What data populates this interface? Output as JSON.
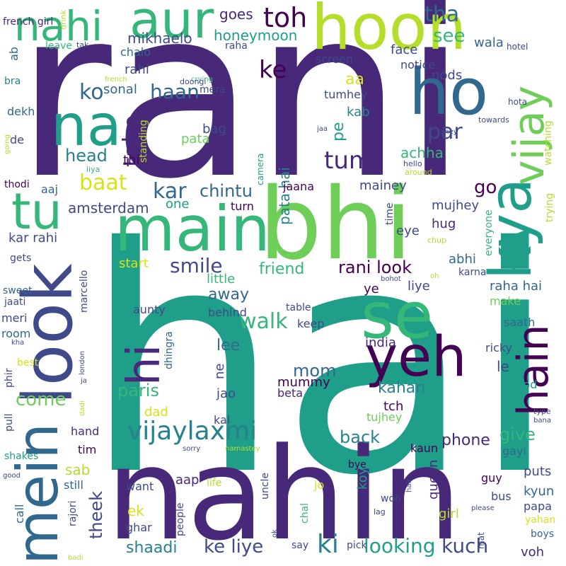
{
  "cloud": {
    "background": "#ffffff",
    "colors": {
      "dark_purple": "#440154",
      "purple": "#482878",
      "indigo": "#3e4a89",
      "blue": "#31688e",
      "teal_blue": "#26828e",
      "teal": "#1f9e89",
      "green": "#35b779",
      "light_green": "#6ece58",
      "lime": "#b5de2b",
      "yellow": "#d8e219"
    },
    "words": [
      {
        "id": "hai",
        "text": "hai"
      },
      {
        "id": "rani",
        "text": "rani"
      },
      {
        "id": "nahin",
        "text": "nahin"
      },
      {
        "id": "bhi",
        "text": "bhi"
      },
      {
        "id": "hoon",
        "text": "hoon"
      },
      {
        "id": "main",
        "text": "main"
      },
      {
        "id": "look",
        "text": "look"
      },
      {
        "id": "mein",
        "text": "mein"
      },
      {
        "id": "se",
        "text": "se"
      },
      {
        "id": "yeh",
        "text": "yeh"
      },
      {
        "id": "na",
        "text": "na"
      },
      {
        "id": "ho",
        "text": "ho"
      },
      {
        "id": "kya",
        "text": "kya"
      },
      {
        "id": "vijay",
        "text": "vijay"
      },
      {
        "id": "aur",
        "text": "aur"
      },
      {
        "id": "nahi",
        "text": "nahi"
      },
      {
        "id": "tu",
        "text": "tu"
      },
      {
        "id": "hain",
        "text": "hain"
      },
      {
        "id": "hi",
        "text": "hi"
      },
      {
        "id": "vijaylaxmi",
        "text": "vijaylaxmi"
      },
      {
        "id": "ki",
        "text": "ki"
      },
      {
        "id": "kuch",
        "text": "kuch"
      },
      {
        "id": "looking",
        "text": "looking"
      },
      {
        "id": "ke_liye_1",
        "text": "ke liye"
      },
      {
        "id": "toh",
        "text": "toh"
      },
      {
        "id": "tha",
        "text": "tha"
      },
      {
        "id": "see",
        "text": "see"
      },
      {
        "id": "ke_1",
        "text": "ke"
      },
      {
        "id": "ko",
        "text": "ko"
      },
      {
        "id": "haan",
        "text": "haan"
      },
      {
        "id": "take",
        "text": "take"
      },
      {
        "id": "par",
        "text": "par"
      },
      {
        "id": "tum",
        "text": "tum"
      },
      {
        "id": "baat",
        "text": "baat"
      },
      {
        "id": "kar",
        "text": "kar"
      },
      {
        "id": "chintu",
        "text": "chintu"
      },
      {
        "id": "smile",
        "text": "smile"
      },
      {
        "id": "walk",
        "text": "walk"
      },
      {
        "id": "friend",
        "text": "friend"
      },
      {
        "id": "rani_look",
        "text": "rani look"
      },
      {
        "id": "go",
        "text": "go"
      },
      {
        "id": "head",
        "text": "head"
      },
      {
        "id": "mikhaelo",
        "text": "mikhaelo"
      },
      {
        "id": "honeymoon",
        "text": "honeymoon"
      },
      {
        "id": "goes",
        "text": "goes"
      },
      {
        "id": "amsterdam",
        "text": "amsterdam"
      },
      {
        "id": "come",
        "text": "come"
      },
      {
        "id": "paris",
        "text": "paris"
      },
      {
        "id": "mom",
        "text": "mom"
      },
      {
        "id": "back",
        "text": "back"
      },
      {
        "id": "give",
        "text": "give"
      },
      {
        "id": "phone",
        "text": "phone"
      },
      {
        "id": "kahan",
        "text": "kahan"
      },
      {
        "id": "shaadi",
        "text": "shaadi"
      },
      {
        "id": "theek",
        "text": "theek"
      },
      {
        "id": "away",
        "text": "away"
      },
      {
        "id": "lee",
        "text": "lee"
      },
      {
        "id": "start",
        "text": "start"
      },
      {
        "id": "kar_rahi",
        "text": "kar rahi"
      },
      {
        "id": "pata_hai",
        "text": "pata hai"
      },
      {
        "id": "sonal",
        "text": "sonal"
      },
      {
        "id": "rahi",
        "text": "rahi"
      },
      {
        "id": "aa",
        "text": "aa"
      },
      {
        "id": "kab",
        "text": "kab"
      },
      {
        "id": "pe",
        "text": "pe"
      },
      {
        "id": "achha",
        "text": "achha"
      },
      {
        "id": "mainey",
        "text": "mainey"
      },
      {
        "id": "mujhey",
        "text": "mujhey"
      },
      {
        "id": "hug",
        "text": "hug"
      },
      {
        "id": "eye",
        "text": "eye"
      },
      {
        "id": "abhi",
        "text": "abhi"
      },
      {
        "id": "liye",
        "text": "liye"
      },
      {
        "id": "ye",
        "text": "ye"
      },
      {
        "id": "raha_hai",
        "text": "raha hai"
      },
      {
        "id": "make",
        "text": "make"
      },
      {
        "id": "saath",
        "text": "saath"
      },
      {
        "id": "ricky",
        "text": "ricky"
      },
      {
        "id": "le",
        "text": "le"
      },
      {
        "id": "food",
        "text": "food"
      },
      {
        "id": "india",
        "text": "india"
      },
      {
        "id": "mummy",
        "text": "mummy"
      },
      {
        "id": "beta",
        "text": "beta"
      },
      {
        "id": "tch",
        "text": "tch"
      },
      {
        "id": "tujhey",
        "text": "tujhey"
      },
      {
        "id": "ka",
        "text": "ka"
      },
      {
        "id": "queen",
        "text": "queen"
      },
      {
        "id": "koyi",
        "text": "koyi"
      },
      {
        "id": "kaun",
        "text": "kaun"
      },
      {
        "id": "gayi",
        "text": "gayi"
      },
      {
        "id": "puts",
        "text": "puts"
      },
      {
        "id": "kyun",
        "text": "kyun"
      },
      {
        "id": "papa",
        "text": "papa"
      },
      {
        "id": "yahan",
        "text": "yahan"
      },
      {
        "id": "boys",
        "text": "boys"
      },
      {
        "id": "guy",
        "text": "guy"
      },
      {
        "id": "bus",
        "text": "bus"
      },
      {
        "id": "girl",
        "text": "girl"
      },
      {
        "id": "voh",
        "text": "voh"
      },
      {
        "id": "aap",
        "text": "aap"
      },
      {
        "id": "ek",
        "text": "ek"
      },
      {
        "id": "ghar",
        "text": "ghar"
      },
      {
        "id": "want",
        "text": "want"
      },
      {
        "id": "sab",
        "text": "sab"
      },
      {
        "id": "still",
        "text": "still"
      },
      {
        "id": "tim",
        "text": "tim"
      },
      {
        "id": "hand",
        "text": "hand"
      },
      {
        "id": "dad",
        "text": "dad"
      },
      {
        "id": "kal",
        "text": "kal"
      },
      {
        "id": "jao",
        "text": "jao"
      },
      {
        "id": "ne",
        "text": "ne"
      },
      {
        "id": "keep",
        "text": "keep"
      },
      {
        "id": "table",
        "text": "table"
      },
      {
        "id": "behind",
        "text": "behind"
      },
      {
        "id": "aunty",
        "text": "aunty"
      },
      {
        "id": "little",
        "text": "little"
      },
      {
        "id": "turn",
        "text": "turn"
      },
      {
        "id": "one",
        "text": "one"
      },
      {
        "id": "aaj",
        "text": "aaj"
      },
      {
        "id": "jaana",
        "text": "jaana"
      },
      {
        "id": "thi",
        "text": "thi"
      },
      {
        "id": "bag",
        "text": "bag"
      },
      {
        "id": "pata",
        "text": "pata"
      },
      {
        "id": "mera",
        "text": "mera"
      },
      {
        "id": "tumhey",
        "text": "tumhey"
      },
      {
        "id": "nods",
        "text": "nods"
      },
      {
        "id": "notice",
        "text": "notice"
      },
      {
        "id": "face",
        "text": "face"
      },
      {
        "id": "wala",
        "text": "wala"
      },
      {
        "id": "screen",
        "text": "screen"
      },
      {
        "id": "raha",
        "text": "raha"
      },
      {
        "id": "chalo",
        "text": "chalo"
      },
      {
        "id": "hotel",
        "text": "hotel"
      },
      {
        "id": "leave",
        "text": "leave"
      },
      {
        "id": "tak",
        "text": "tak"
      },
      {
        "id": "ab",
        "text": "ab"
      },
      {
        "id": "french_girl",
        "text": "french girl"
      },
      {
        "id": "bra",
        "text": "bra"
      },
      {
        "id": "dekh",
        "text": "dekh"
      },
      {
        "id": "de",
        "text": "de"
      },
      {
        "id": "thodi",
        "text": "thodi"
      },
      {
        "id": "drink",
        "text": "drink"
      },
      {
        "id": "french",
        "text": "french"
      },
      {
        "id": "crying",
        "text": "crying"
      },
      {
        "id": "doongi",
        "text": "doongi"
      },
      {
        "id": "standing",
        "text": "standing"
      },
      {
        "id": "towards",
        "text": "towards"
      },
      {
        "id": "jaa",
        "text": "jaa"
      },
      {
        "id": "rahey",
        "text": "rahey"
      },
      {
        "id": "camera",
        "text": "camera"
      },
      {
        "id": "hello",
        "text": "hello"
      },
      {
        "id": "around",
        "text": "around"
      },
      {
        "id": "liya",
        "text": "liya"
      },
      {
        "id": "going",
        "text": "going"
      },
      {
        "id": "hota",
        "text": "hota"
      },
      {
        "id": "watching",
        "text": "watching"
      },
      {
        "id": "trying",
        "text": "trying"
      },
      {
        "id": "everyone",
        "text": "everyone"
      },
      {
        "id": "time",
        "text": "time"
      },
      {
        "id": "chup",
        "text": "chup"
      },
      {
        "id": "karna",
        "text": "karna"
      },
      {
        "id": "bohot",
        "text": "bohot"
      },
      {
        "id": "oh",
        "text": "oh"
      },
      {
        "id": "gets",
        "text": "gets"
      },
      {
        "id": "sweet",
        "text": "sweet"
      },
      {
        "id": "jaati",
        "text": "jaati"
      },
      {
        "id": "meri",
        "text": "meri"
      },
      {
        "id": "room",
        "text": "room"
      },
      {
        "id": "kha",
        "text": "kha"
      },
      {
        "id": "best",
        "text": "best"
      },
      {
        "id": "phir",
        "text": "phir"
      },
      {
        "id": "marcello",
        "text": "marcello"
      },
      {
        "id": "dhingra",
        "text": "dhingra"
      },
      {
        "id": "london",
        "text": "london"
      },
      {
        "id": "ja",
        "text": "ja"
      },
      {
        "id": "dadi",
        "text": "dadi"
      },
      {
        "id": "pull",
        "text": "pull"
      },
      {
        "id": "shakes",
        "text": "shakes"
      },
      {
        "id": "good",
        "text": "good"
      },
      {
        "id": "call",
        "text": "call"
      },
      {
        "id": "rajori",
        "text": "rajori"
      },
      {
        "id": "badi",
        "text": "badi"
      },
      {
        "id": "sorry",
        "text": "sorry"
      },
      {
        "id": "namastey",
        "text": "namastey"
      },
      {
        "id": "uncle",
        "text": "uncle"
      },
      {
        "id": "people",
        "text": "people"
      },
      {
        "id": "life",
        "text": "life"
      },
      {
        "id": "chal",
        "text": "chal"
      },
      {
        "id": "jo",
        "text": "jo"
      },
      {
        "id": "ok",
        "text": "ok"
      },
      {
        "id": "say",
        "text": "say"
      },
      {
        "id": "pick",
        "text": "pick"
      },
      {
        "id": "bye",
        "text": "bye"
      },
      {
        "id": "wahan",
        "text": "wahan"
      },
      {
        "id": "woh",
        "text": "woh"
      },
      {
        "id": "lag",
        "text": "lag"
      },
      {
        "id": "hair",
        "text": "hair"
      },
      {
        "id": "mat",
        "text": "mat"
      },
      {
        "id": "please",
        "text": "please"
      },
      {
        "id": "type",
        "text": "type"
      },
      {
        "id": "bana",
        "text": "bana"
      }
    ]
  }
}
